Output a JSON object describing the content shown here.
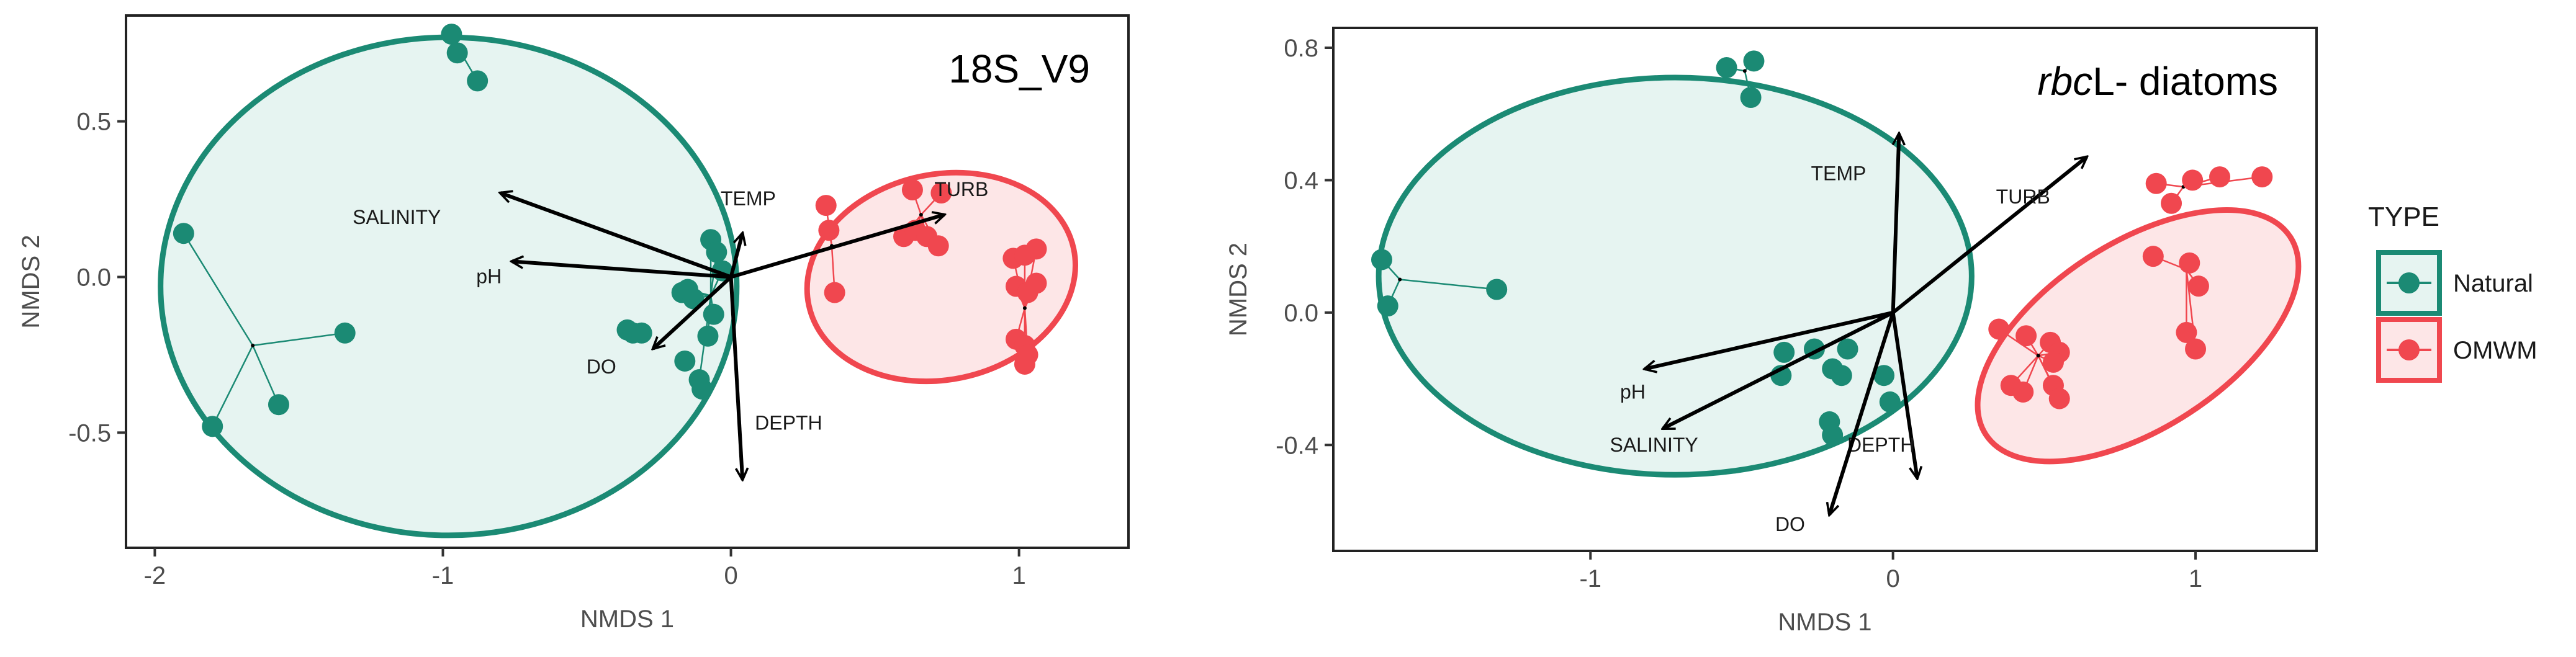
{
  "colors": {
    "natural": "#1b8a74",
    "natural_fill": "#e6f4f1",
    "omwm": "#f0474f",
    "omwm_fill": "#fde6e7",
    "arrow": "#000000",
    "axis_text": "#4d4d4d"
  },
  "legend": {
    "title": "TYPE",
    "entries": [
      {
        "label": "Natural",
        "color": "#1b8a74"
      },
      {
        "label": "OMWM",
        "color": "#f0474f"
      }
    ]
  },
  "chart_data": [
    {
      "type": "scatter",
      "title": "18S_V9",
      "title_italic_prefix": "",
      "title_suffix": "18S_V9",
      "xlabel": "NMDS 1",
      "ylabel": "NMDS 2",
      "xlim": [
        -2.1,
        1.38
      ],
      "ylim": [
        -0.87,
        0.84
      ],
      "xticks": [
        -2,
        -1,
        0,
        1
      ],
      "xtick_labels": [
        "-2",
        "-1",
        "0",
        "1"
      ],
      "yticks": [
        -0.5,
        0.0,
        0.5
      ],
      "ytick_labels": [
        "-0.5",
        "0.0",
        "0.5"
      ],
      "grid": false,
      "groups": [
        {
          "name": "Natural",
          "ellipse": {
            "cx": -0.98,
            "cy": -0.03,
            "rx": 1.0,
            "ry": 0.8
          },
          "points": [
            [
              -0.97,
              0.78
            ],
            [
              -0.95,
              0.72
            ],
            [
              -0.88,
              0.63
            ],
            [
              -1.9,
              0.14
            ],
            [
              -1.8,
              -0.48
            ],
            [
              -1.57,
              -0.41
            ],
            [
              -1.34,
              -0.18
            ],
            [
              -0.36,
              -0.17
            ],
            [
              -0.34,
              -0.18
            ],
            [
              -0.31,
              -0.18
            ],
            [
              -0.17,
              -0.05
            ],
            [
              -0.15,
              -0.04
            ],
            [
              -0.13,
              -0.07
            ],
            [
              -0.07,
              0.12
            ],
            [
              -0.05,
              0.08
            ],
            [
              -0.03,
              0.02
            ],
            [
              -0.06,
              -0.12
            ],
            [
              -0.08,
              -0.19
            ],
            [
              -0.11,
              -0.33
            ],
            [
              -0.1,
              -0.36
            ],
            [
              -0.16,
              -0.27
            ]
          ],
          "spider": [
            {
              "center": [
                -1.66,
                -0.22
              ],
              "members": [
                [
                  -1.9,
                  0.14
                ],
                [
                  -1.8,
                  -0.48
                ],
                [
                  -1.57,
                  -0.41
                ],
                [
                  -1.34,
                  -0.18
                ]
              ]
            },
            {
              "center": [
                -0.95,
                0.74
              ],
              "members": [
                [
                  -0.97,
                  0.78
                ],
                [
                  -0.95,
                  0.72
                ],
                [
                  -0.88,
                  0.63
                ]
              ]
            },
            {
              "center": [
                -0.07,
                -0.06
              ],
              "members": [
                [
                  -0.07,
                  0.12
                ],
                [
                  -0.05,
                  0.08
                ],
                [
                  -0.03,
                  0.02
                ],
                [
                  -0.13,
                  -0.07
                ],
                [
                  -0.15,
                  -0.04
                ],
                [
                  -0.17,
                  -0.05
                ],
                [
                  -0.06,
                  -0.12
                ],
                [
                  -0.08,
                  -0.19
                ],
                [
                  -0.11,
                  -0.33
                ]
              ]
            }
          ]
        },
        {
          "name": "OMWM",
          "ellipse": {
            "cx": 0.73,
            "cy": 0.0,
            "rx": 0.47,
            "ry": 0.33,
            "angle": -12
          },
          "points": [
            [
              0.33,
              0.23
            ],
            [
              0.34,
              0.15
            ],
            [
              0.36,
              -0.05
            ],
            [
              0.63,
              0.28
            ],
            [
              0.73,
              0.27
            ],
            [
              0.6,
              0.13
            ],
            [
              0.64,
              0.15
            ],
            [
              0.68,
              0.13
            ],
            [
              0.72,
              0.1
            ],
            [
              0.98,
              0.06
            ],
            [
              1.02,
              0.07
            ],
            [
              1.06,
              0.09
            ],
            [
              0.99,
              -0.03
            ],
            [
              1.03,
              -0.05
            ],
            [
              1.06,
              -0.02
            ],
            [
              0.99,
              -0.2
            ],
            [
              1.02,
              -0.22
            ],
            [
              1.03,
              -0.25
            ],
            [
              1.02,
              -0.28
            ]
          ],
          "spider": [
            {
              "center": [
                0.35,
                0.1
              ],
              "members": [
                [
                  0.33,
                  0.23
                ],
                [
                  0.34,
                  0.15
                ],
                [
                  0.36,
                  -0.05
                ]
              ]
            },
            {
              "center": [
                0.66,
                0.2
              ],
              "members": [
                [
                  0.63,
                  0.28
                ],
                [
                  0.73,
                  0.27
                ],
                [
                  0.6,
                  0.13
                ],
                [
                  0.64,
                  0.15
                ],
                [
                  0.68,
                  0.13
                ],
                [
                  0.72,
                  0.1
                ]
              ]
            },
            {
              "center": [
                1.02,
                -0.1
              ],
              "members": [
                [
                  0.98,
                  0.06
                ],
                [
                  1.02,
                  0.07
                ],
                [
                  1.06,
                  0.09
                ],
                [
                  0.99,
                  -0.03
                ],
                [
                  1.03,
                  -0.05
                ],
                [
                  1.06,
                  -0.02
                ],
                [
                  0.99,
                  -0.2
                ],
                [
                  1.02,
                  -0.22
                ],
                [
                  1.03,
                  -0.25
                ],
                [
                  1.02,
                  -0.28
                ]
              ]
            }
          ]
        }
      ],
      "vectors": [
        {
          "label": "SALINITY",
          "x": -0.8,
          "y": 0.27,
          "label_x": -1.16,
          "label_y": 0.17
        },
        {
          "label": "pH",
          "x": -0.76,
          "y": 0.05,
          "label_x": -0.84,
          "label_y": -0.02
        },
        {
          "label": "DO",
          "x": -0.27,
          "y": -0.23,
          "label_x": -0.45,
          "label_y": -0.31
        },
        {
          "label": "TEMP",
          "x": 0.04,
          "y": 0.14,
          "label_x": 0.06,
          "label_y": 0.23
        },
        {
          "label": "TURB",
          "x": 0.74,
          "y": 0.2,
          "label_x": 0.8,
          "label_y": 0.26
        },
        {
          "label": "DEPTH",
          "x": 0.04,
          "y": -0.65,
          "label_x": 0.2,
          "label_y": -0.49
        }
      ]
    },
    {
      "type": "scatter",
      "title": "rbcL- diatoms",
      "title_italic_prefix": "rbc",
      "title_suffix": "L- diatoms",
      "xlabel": "NMDS 1",
      "ylabel": "NMDS 2",
      "xlim": [
        -1.85,
        1.4
      ],
      "ylim": [
        -0.72,
        0.86
      ],
      "xticks": [
        -1,
        0,
        1
      ],
      "xtick_labels": [
        "-1",
        "0",
        "1"
      ],
      "yticks": [
        -0.4,
        0.0,
        0.4,
        0.8
      ],
      "ytick_labels": [
        "-0.4",
        "0.0",
        "0.4",
        "0.8"
      ],
      "grid": false,
      "groups": [
        {
          "name": "Natural",
          "ellipse": {
            "cx": -0.72,
            "cy": 0.11,
            "rx": 0.98,
            "ry": 0.6
          },
          "points": [
            [
              -0.55,
              0.74
            ],
            [
              -0.46,
              0.76
            ],
            [
              -0.47,
              0.65
            ],
            [
              -1.69,
              0.16
            ],
            [
              -1.67,
              0.02
            ],
            [
              -1.31,
              0.07
            ],
            [
              -0.26,
              -0.11
            ],
            [
              -0.15,
              -0.11
            ],
            [
              -0.2,
              -0.17
            ],
            [
              -0.17,
              -0.19
            ],
            [
              -0.36,
              -0.12
            ],
            [
              -0.37,
              -0.19
            ],
            [
              -0.21,
              -0.33
            ],
            [
              -0.2,
              -0.37
            ],
            [
              -0.03,
              -0.19
            ],
            [
              -0.01,
              -0.27
            ]
          ],
          "spider": [
            {
              "center": [
                -0.49,
                0.73
              ],
              "members": [
                [
                  -0.55,
                  0.74
                ],
                [
                  -0.46,
                  0.76
                ],
                [
                  -0.47,
                  0.65
                ]
              ]
            },
            {
              "center": [
                -1.63,
                0.1
              ],
              "members": [
                [
                  -1.69,
                  0.16
                ],
                [
                  -1.67,
                  0.02
                ],
                [
                  -1.31,
                  0.07
                ]
              ]
            }
          ]
        },
        {
          "name": "OMWM",
          "ellipse": {
            "cx": 0.81,
            "cy": -0.07,
            "rx": 0.6,
            "ry": 0.28,
            "angle": -33
          },
          "points": [
            [
              0.87,
              0.39
            ],
            [
              0.99,
              0.4
            ],
            [
              1.08,
              0.41
            ],
            [
              1.22,
              0.41
            ],
            [
              0.92,
              0.33
            ],
            [
              0.86,
              0.17
            ],
            [
              0.98,
              0.15
            ],
            [
              1.01,
              0.08
            ],
            [
              0.97,
              -0.06
            ],
            [
              1.0,
              -0.11
            ],
            [
              0.35,
              -0.05
            ],
            [
              0.44,
              -0.07
            ],
            [
              0.52,
              -0.09
            ],
            [
              0.55,
              -0.12
            ],
            [
              0.53,
              -0.15
            ],
            [
              0.53,
              -0.22
            ],
            [
              0.55,
              -0.26
            ],
            [
              0.39,
              -0.22
            ],
            [
              0.43,
              -0.24
            ]
          ],
          "spider": [
            {
              "center": [
                0.96,
                0.38
              ],
              "members": [
                [
                  0.87,
                  0.39
                ],
                [
                  0.99,
                  0.4
                ],
                [
                  1.08,
                  0.41
                ],
                [
                  1.22,
                  0.41
                ],
                [
                  0.92,
                  0.33
                ]
              ]
            },
            {
              "center": [
                0.97,
                0.13
              ],
              "members": [
                [
                  0.86,
                  0.17
                ],
                [
                  0.98,
                  0.15
                ],
                [
                  1.01,
                  0.08
                ],
                [
                  0.97,
                  -0.06
                ],
                [
                  1.0,
                  -0.11
                ]
              ]
            },
            {
              "center": [
                0.48,
                -0.13
              ],
              "members": [
                [
                  0.35,
                  -0.05
                ],
                [
                  0.44,
                  -0.07
                ],
                [
                  0.52,
                  -0.09
                ],
                [
                  0.55,
                  -0.12
                ],
                [
                  0.53,
                  -0.15
                ],
                [
                  0.53,
                  -0.22
                ],
                [
                  0.55,
                  -0.26
                ],
                [
                  0.39,
                  -0.22
                ],
                [
                  0.43,
                  -0.24
                ]
              ]
            }
          ]
        }
      ],
      "vectors": [
        {
          "label": "TEMP",
          "x": 0.02,
          "y": 0.54,
          "label_x": -0.18,
          "label_y": 0.4
        },
        {
          "label": "TURB",
          "x": 0.64,
          "y": 0.47,
          "label_x": 0.43,
          "label_y": 0.33
        },
        {
          "label": "pH",
          "x": -0.82,
          "y": -0.17,
          "label_x": -0.86,
          "label_y": -0.26
        },
        {
          "label": "SALINITY",
          "x": -0.76,
          "y": -0.35,
          "label_x": -0.79,
          "label_y": -0.42
        },
        {
          "label": "DEPTH",
          "x": 0.08,
          "y": -0.5,
          "label_x": -0.04,
          "label_y": -0.42
        },
        {
          "label": "DO",
          "x": -0.21,
          "y": -0.61,
          "label_x": -0.34,
          "label_y": -0.66
        }
      ]
    }
  ]
}
